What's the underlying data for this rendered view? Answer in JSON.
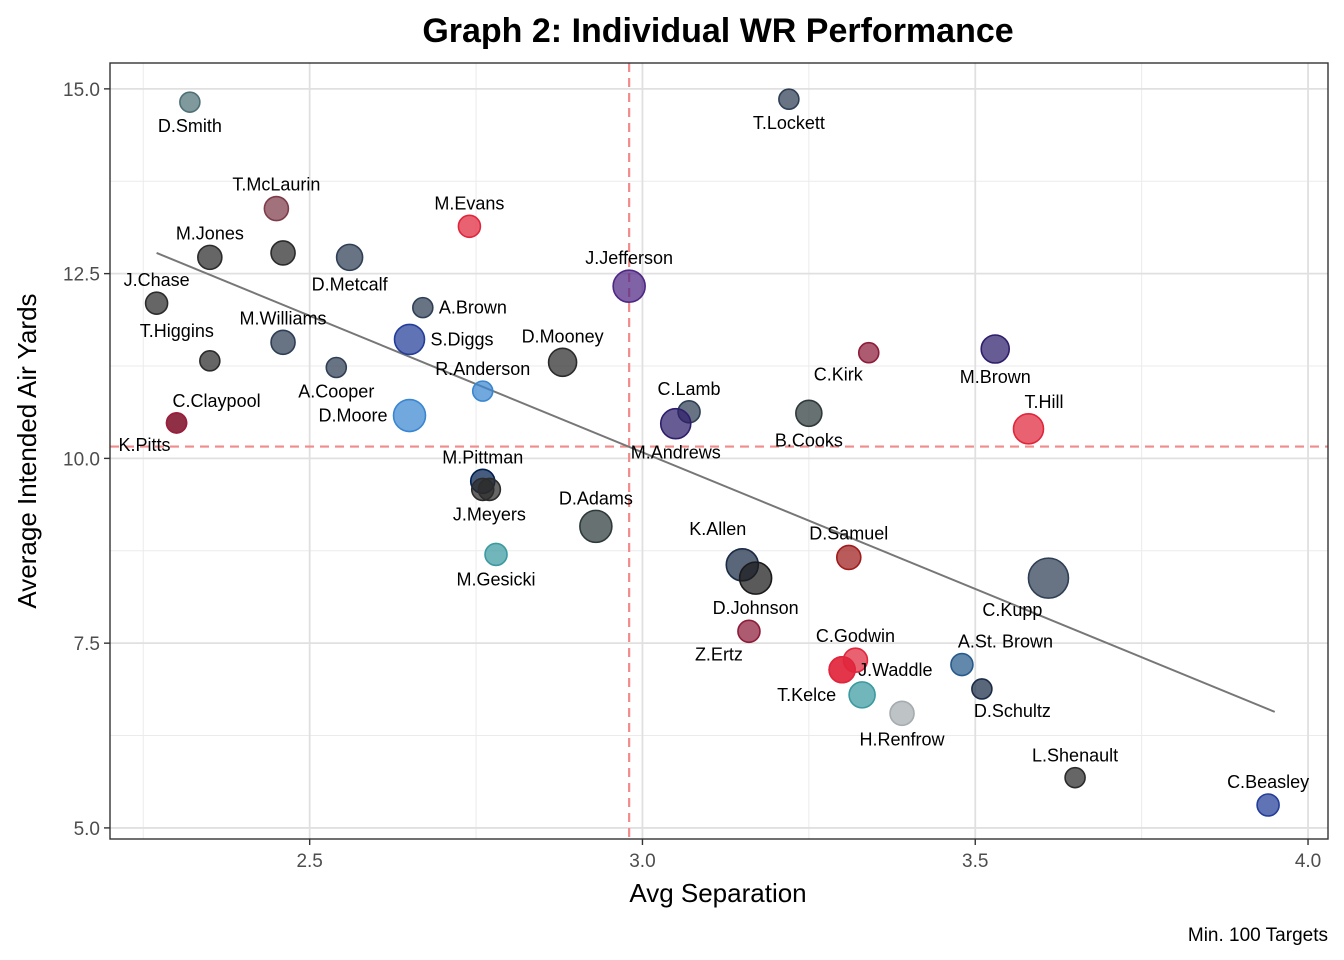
{
  "chart_data": {
    "type": "scatter",
    "title": "Graph 2: Individual WR Performance",
    "xlabel": "Avg Separation",
    "ylabel": "Average Intended Air Yards",
    "caption": "Min. 100 Targets",
    "xlim": [
      2.2,
      4.03
    ],
    "ylim": [
      4.85,
      15.35
    ],
    "x_ticks": [
      2.5,
      3.0,
      3.5,
      4.0
    ],
    "x_tick_labels": [
      "2.5",
      "3.0",
      "3.5",
      "4.0"
    ],
    "y_ticks": [
      5.0,
      7.5,
      10.0,
      12.5,
      15.0
    ],
    "y_tick_labels": [
      "5.0",
      "7.5",
      "10.0",
      "12.5",
      "15.0"
    ],
    "grid": true,
    "reference_lines": {
      "x_mean": 2.98,
      "y_mean": 10.16,
      "color": "#f28b8b"
    },
    "trend_line": {
      "x": [
        2.27,
        3.95
      ],
      "y": [
        12.78,
        6.57
      ],
      "color": "#777777"
    },
    "points": [
      {
        "name": "D.Smith",
        "x": 2.32,
        "y": 14.82,
        "color": "#4e7177",
        "size": 10,
        "label_pos": "below"
      },
      {
        "name": "T.Lockett",
        "x": 3.22,
        "y": 14.86,
        "color": "#2e3f55",
        "size": 10,
        "label_pos": "below"
      },
      {
        "name": "T.McLaurin",
        "x": 2.45,
        "y": 13.38,
        "color": "#7e3b4a",
        "size": 12,
        "label_pos": "above"
      },
      {
        "name": "M.Evans",
        "x": 2.74,
        "y": 13.14,
        "color": "#e0263c",
        "size": 11,
        "label_pos": "above"
      },
      {
        "name": "M.Jones",
        "x": 2.35,
        "y": 12.72,
        "color": "#2b2b2b",
        "size": 12,
        "label_pos": "above"
      },
      {
        "name": "",
        "x": 2.46,
        "y": 12.78,
        "color": "#2b2b2b",
        "size": 12,
        "label_pos": "none"
      },
      {
        "name": "D.Metcalf",
        "x": 2.56,
        "y": 12.72,
        "color": "#2e3f55",
        "size": 13,
        "label_pos": "below"
      },
      {
        "name": "J.Jefferson",
        "x": 2.98,
        "y": 12.33,
        "color": "#4f2683",
        "size": 16,
        "label_pos": "above"
      },
      {
        "name": "J.Chase",
        "x": 2.27,
        "y": 12.1,
        "color": "#2b2b2b",
        "size": 11,
        "label_pos": "above"
      },
      {
        "name": "A.Brown",
        "x": 2.67,
        "y": 12.04,
        "color": "#2e3f55",
        "size": 10,
        "label_pos": "right"
      },
      {
        "name": "T.Higgins",
        "x": 2.35,
        "y": 11.32,
        "color": "#2b2b2b",
        "size": 10,
        "label_pos": "above-left"
      },
      {
        "name": "M.Williams",
        "x": 2.46,
        "y": 11.57,
        "color": "#2e3f55",
        "size": 12,
        "label_pos": "above"
      },
      {
        "name": "S.Diggs",
        "x": 2.65,
        "y": 11.61,
        "color": "#233d99",
        "size": 15,
        "label_pos": "right"
      },
      {
        "name": "A.Cooper",
        "x": 2.54,
        "y": 11.23,
        "color": "#2e3f55",
        "size": 10,
        "label_pos": "below"
      },
      {
        "name": "D.Mooney",
        "x": 2.88,
        "y": 11.3,
        "color": "#2b2b2b",
        "size": 14,
        "label_pos": "above"
      },
      {
        "name": "C.Kirk",
        "x": 3.34,
        "y": 11.43,
        "color": "#8c1c3a",
        "size": 10,
        "label_pos": "below-left"
      },
      {
        "name": "M.Brown",
        "x": 3.53,
        "y": 11.48,
        "color": "#2e1d6b",
        "size": 14,
        "label_pos": "below"
      },
      {
        "name": "R.Anderson",
        "x": 2.76,
        "y": 10.91,
        "color": "#3a86d1",
        "size": 10,
        "label_pos": "above"
      },
      {
        "name": "C.Claypool",
        "x": 2.3,
        "y": 10.48,
        "color": "#2b2b2b",
        "size": 10,
        "label_pos": "above-right"
      },
      {
        "name": "D.Moore",
        "x": 2.65,
        "y": 10.58,
        "color": "#3a86d1",
        "size": 16,
        "label_pos": "left"
      },
      {
        "name": "C.Lamb",
        "x": 3.07,
        "y": 10.63,
        "color": "#2e3f55",
        "size": 11,
        "label_pos": "above"
      },
      {
        "name": "M.Andrews",
        "x": 3.05,
        "y": 10.47,
        "color": "#2e1d6b",
        "size": 15,
        "label_pos": "below"
      },
      {
        "name": "B.Cooks",
        "x": 3.25,
        "y": 10.61,
        "color": "#2e3a3a",
        "size": 13,
        "label_pos": "below"
      },
      {
        "name": "T.Hill",
        "x": 3.58,
        "y": 10.4,
        "color": "#e0263c",
        "size": 15,
        "label_pos": "above-right"
      },
      {
        "name": "K.Pitts",
        "x": 2.3,
        "y": 10.48,
        "color": "#a01c3c",
        "size": 10,
        "label_pos": "below-left"
      },
      {
        "name": "M.Pittman",
        "x": 2.76,
        "y": 9.69,
        "color": "#001f4f",
        "size": 12,
        "label_pos": "above"
      },
      {
        "name": "",
        "x": 2.76,
        "y": 9.58,
        "color": "#2b2b2b",
        "size": 11,
        "label_pos": "none"
      },
      {
        "name": "J.Meyers",
        "x": 2.77,
        "y": 9.58,
        "color": "#2b2b2b",
        "size": 11,
        "label_pos": "below"
      },
      {
        "name": "D.Adams",
        "x": 2.93,
        "y": 9.08,
        "color": "#2e3a3a",
        "size": 16,
        "label_pos": "above"
      },
      {
        "name": "M.Gesicki",
        "x": 2.78,
        "y": 8.7,
        "color": "#3a9aa0",
        "size": 11,
        "label_pos": "below"
      },
      {
        "name": "K.Allen",
        "x": 3.15,
        "y": 8.56,
        "color": "#1a2b45",
        "size": 16,
        "label_pos": "above-left"
      },
      {
        "name": "D.Johnson",
        "x": 3.17,
        "y": 8.38,
        "color": "#1a1a1a",
        "size": 16,
        "label_pos": "below"
      },
      {
        "name": "D.Samuel",
        "x": 3.31,
        "y": 8.66,
        "color": "#a01c1c",
        "size": 12,
        "label_pos": "above"
      },
      {
        "name": "C.Kupp",
        "x": 3.61,
        "y": 8.38,
        "color": "#2e3f55",
        "size": 20,
        "label_pos": "below-left"
      },
      {
        "name": "Z.Ertz",
        "x": 3.16,
        "y": 7.66,
        "color": "#8c1c3a",
        "size": 11,
        "label_pos": "below-left"
      },
      {
        "name": "C.Godwin",
        "x": 3.32,
        "y": 7.27,
        "color": "#e0263c",
        "size": 12,
        "label_pos": "above"
      },
      {
        "name": "",
        "x": 3.3,
        "y": 7.14,
        "color": "#e0263c",
        "size": 13,
        "label_pos": "none"
      },
      {
        "name": "T.Kelce",
        "x": 3.3,
        "y": 7.14,
        "color": "#e0263c",
        "size": 13,
        "label_pos": "below-left"
      },
      {
        "name": "J.Waddle",
        "x": 3.33,
        "y": 6.8,
        "color": "#3a9aa0",
        "size": 13,
        "label_pos": "above-right"
      },
      {
        "name": "A.St. Brown",
        "x": 3.48,
        "y": 7.21,
        "color": "#265a8c",
        "size": 11,
        "label_pos": "above-right"
      },
      {
        "name": "D.Schultz",
        "x": 3.51,
        "y": 6.88,
        "color": "#1a2b45",
        "size": 10,
        "label_pos": "below-right"
      },
      {
        "name": "H.Renfrow",
        "x": 3.39,
        "y": 6.55,
        "color": "#a5acaf",
        "size": 12,
        "label_pos": "below"
      },
      {
        "name": "L.Shenault",
        "x": 3.65,
        "y": 5.68,
        "color": "#2b2b2b",
        "size": 10,
        "label_pos": "above"
      },
      {
        "name": "C.Beasley",
        "x": 3.94,
        "y": 5.31,
        "color": "#233d99",
        "size": 11,
        "label_pos": "above"
      }
    ]
  }
}
